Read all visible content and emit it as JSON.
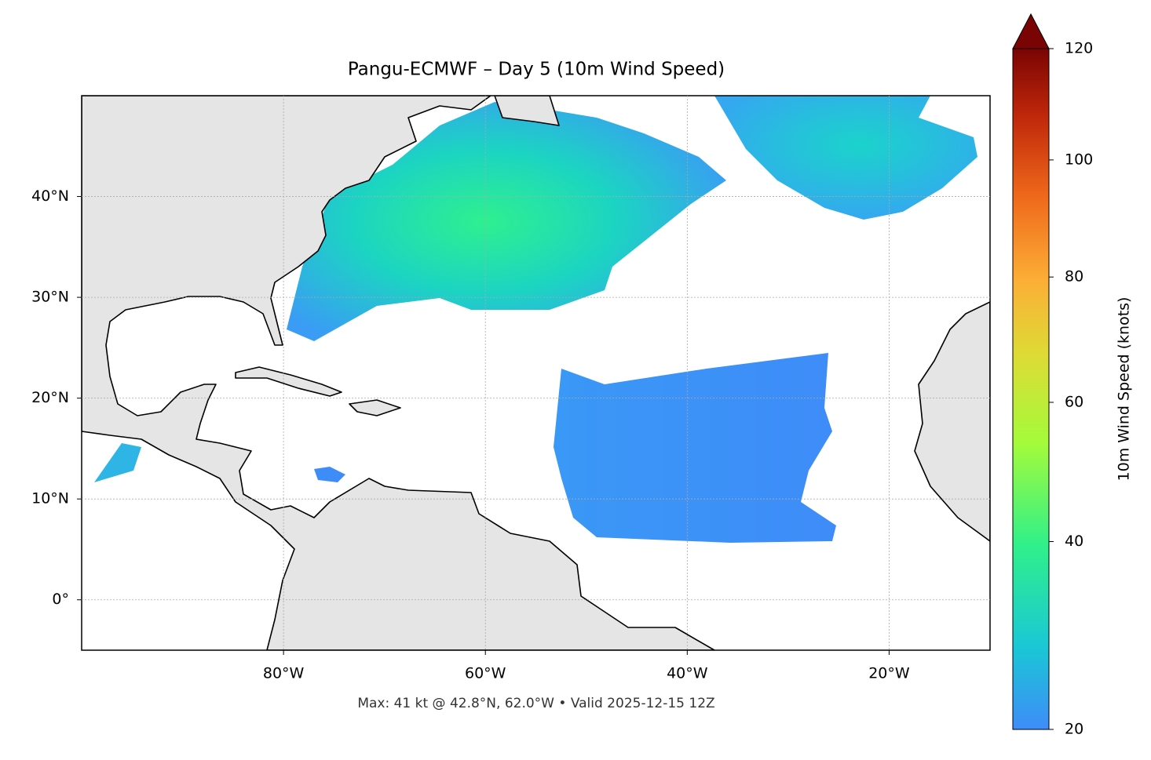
{
  "chart_data": {
    "type": "map",
    "title": "Pangu-ECMWF – Day 5 (10m Wind Speed)",
    "footer": "Max: 41 kt @ 42.8°N, 62.0°W • Valid 2025-12-15 12Z",
    "xlim": [
      -100,
      -10
    ],
    "xticks": [
      {
        "value": -80,
        "label": "80°W"
      },
      {
        "value": -60,
        "label": "60°W"
      },
      {
        "value": -40,
        "label": "40°W"
      },
      {
        "value": -20,
        "label": "20°W"
      }
    ],
    "ylim": [
      -5,
      50
    ],
    "yticks": [
      {
        "value": 0,
        "label": "0°"
      },
      {
        "value": 10,
        "label": "10°N"
      },
      {
        "value": 20,
        "label": "20°N"
      },
      {
        "value": 30,
        "label": "30°N"
      },
      {
        "value": 40,
        "label": "40°N"
      }
    ],
    "grid": true,
    "colorbar": {
      "label": "10m Wind Speed (knots)",
      "lim": [
        20,
        120
      ],
      "ticks": [
        20,
        40,
        60,
        80,
        100,
        120
      ],
      "scale": "power",
      "extend": "max"
    }
  }
}
